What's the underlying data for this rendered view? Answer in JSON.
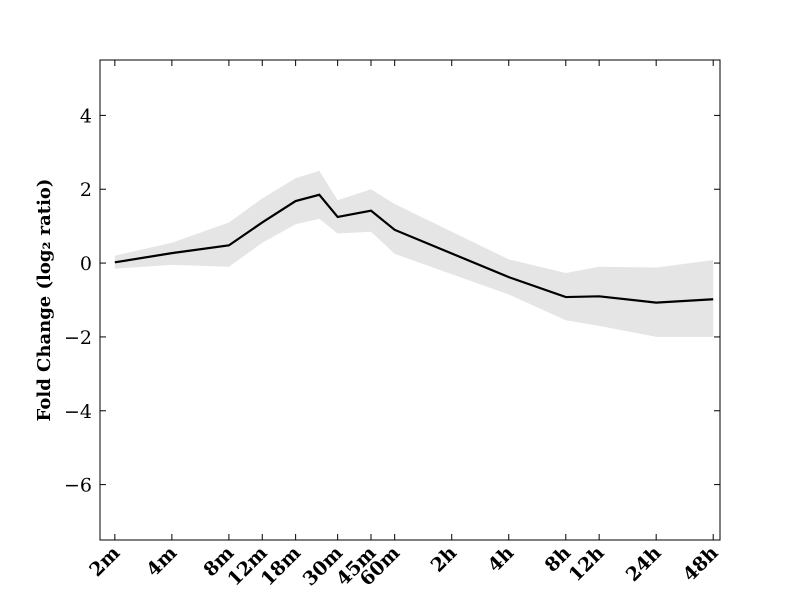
{
  "chart_data": {
    "type": "line",
    "ylabel": "Fold Change (log₂ ratio)",
    "x": [
      2,
      4,
      8,
      12,
      18,
      24,
      30,
      45,
      60,
      240,
      480,
      720,
      1440,
      2880
    ],
    "values": [
      0.02,
      0.27,
      0.48,
      1.1,
      1.68,
      1.85,
      1.25,
      1.42,
      0.9,
      -0.38,
      -0.92,
      -0.9,
      -1.07,
      -0.98
    ],
    "upper": [
      0.2,
      0.55,
      1.1,
      1.75,
      2.3,
      2.5,
      1.7,
      2.0,
      1.6,
      0.1,
      -0.27,
      -0.1,
      -0.12,
      0.08
    ],
    "lower": [
      -0.15,
      -0.05,
      -0.1,
      0.55,
      1.05,
      1.2,
      0.8,
      0.85,
      0.25,
      -0.85,
      -1.55,
      -1.7,
      -2.0,
      -2.0
    ],
    "color": "#000000",
    "band_color": "#e5e5e5",
    "xscale": "log",
    "xlim": [
      1.67,
      3128
    ],
    "xticks": [
      {
        "value": 2,
        "label": "2m"
      },
      {
        "value": 4,
        "label": "4m"
      },
      {
        "value": 8,
        "label": "8m"
      },
      {
        "value": 12,
        "label": "12m"
      },
      {
        "value": 18,
        "label": "18m"
      },
      {
        "value": 30,
        "label": "30m"
      },
      {
        "value": 45,
        "label": "45m"
      },
      {
        "value": 60,
        "label": "60m"
      },
      {
        "value": 120,
        "label": "2h"
      },
      {
        "value": 240,
        "label": "4h"
      },
      {
        "value": 480,
        "label": "8h"
      },
      {
        "value": 720,
        "label": "12h"
      },
      {
        "value": 1440,
        "label": "24h"
      },
      {
        "value": 2880,
        "label": "48h"
      }
    ],
    "ylim": [
      -7.5,
      5.5
    ],
    "yticks": [
      {
        "value": -6,
        "label": "−6"
      },
      {
        "value": -4,
        "label": "−4"
      },
      {
        "value": -2,
        "label": "−2"
      },
      0,
      2,
      4
    ],
    "grid": false
  }
}
